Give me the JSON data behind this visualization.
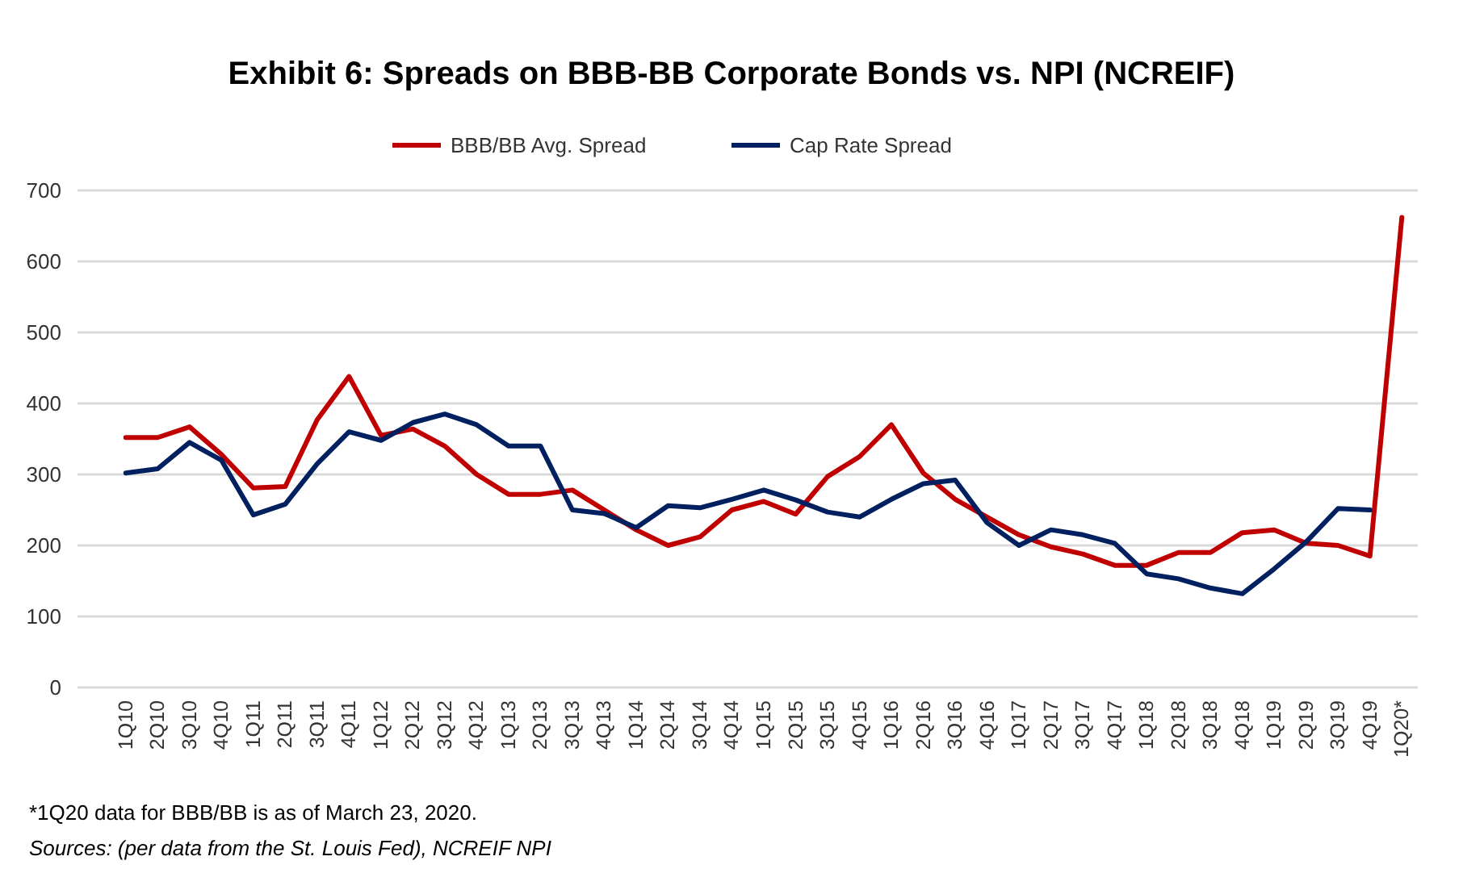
{
  "chart_data": {
    "type": "line",
    "title": "Exhibit 6: Spreads on BBB-BB Corporate Bonds vs. NPI (NCREIF)",
    "categories": [
      "1Q10",
      "2Q10",
      "3Q10",
      "4Q10",
      "1Q11",
      "2Q11",
      "3Q11",
      "4Q11",
      "1Q12",
      "2Q12",
      "3Q12",
      "4Q12",
      "1Q13",
      "2Q13",
      "3Q13",
      "4Q13",
      "1Q14",
      "2Q14",
      "3Q14",
      "4Q14",
      "1Q15",
      "2Q15",
      "3Q15",
      "4Q15",
      "1Q16",
      "2Q16",
      "3Q16",
      "4Q16",
      "1Q17",
      "2Q17",
      "3Q17",
      "4Q17",
      "1Q18",
      "2Q18",
      "3Q18",
      "4Q18",
      "1Q19",
      "2Q19",
      "3Q19",
      "4Q19",
      "1Q20*"
    ],
    "series": [
      {
        "name": "BBB/BB Avg. Spread",
        "color": "#c00000",
        "values": [
          352,
          352,
          367,
          328,
          281,
          283,
          377,
          438,
          355,
          364,
          340,
          300,
          272,
          272,
          278,
          250,
          222,
          200,
          212,
          250,
          262,
          244,
          297,
          325,
          370,
          302,
          265,
          240,
          215,
          198,
          188,
          172,
          172,
          190,
          190,
          218,
          222,
          203,
          200,
          185,
          662
        ]
      },
      {
        "name": "Cap Rate Spread",
        "color": "#002060",
        "values": [
          302,
          308,
          345,
          320,
          243,
          258,
          315,
          360,
          348,
          373,
          385,
          370,
          340,
          340,
          250,
          245,
          225,
          256,
          253,
          265,
          278,
          264,
          247,
          240,
          265,
          287,
          292,
          232,
          200,
          222,
          215,
          203,
          160,
          153,
          140,
          132,
          167,
          205,
          252,
          250,
          null
        ]
      }
    ],
    "ylim": [
      0,
      700
    ],
    "yticks": [
      0,
      100,
      200,
      300,
      400,
      500,
      600,
      700
    ],
    "grid": "y",
    "legend": "top",
    "marker": "none",
    "line_style": "solid",
    "annotations": [
      "*1Q20 data for BBB/BB is as of March 23, 2020.",
      "Sources: (per data from the St. Louis Fed), NCREIF NPI"
    ]
  }
}
